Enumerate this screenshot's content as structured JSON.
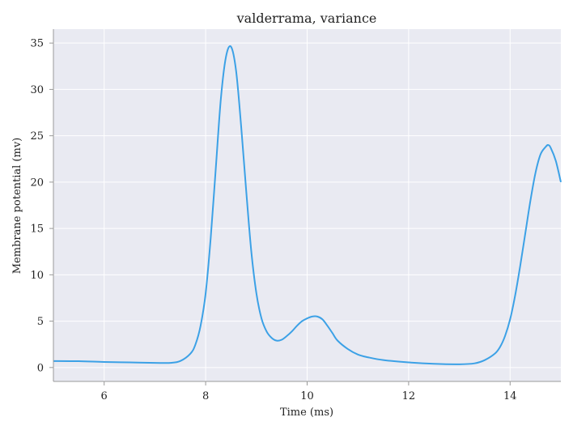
{
  "chart_data": {
    "type": "line",
    "title": "valderrama, variance",
    "xlabel": "Time (ms)",
    "ylabel": "Membrane potential (mv)",
    "xlim": [
      5.0,
      15.0
    ],
    "ylim": [
      -1.5,
      36.5
    ],
    "xticks": [
      6,
      8,
      10,
      12,
      14
    ],
    "yticks": [
      0,
      5,
      10,
      15,
      20,
      25,
      30,
      35
    ],
    "grid": true,
    "plot_background": "#e9eaf2",
    "line_color": "#3ca1e6",
    "series": [
      {
        "x": [
          5.0,
          5.5,
          6.0,
          6.5,
          7.0,
          7.3,
          7.5,
          7.7,
          7.8,
          7.9,
          8.0,
          8.1,
          8.2,
          8.3,
          8.4,
          8.5,
          8.6,
          8.7,
          8.8,
          8.9,
          9.0,
          9.1,
          9.2,
          9.3,
          9.4,
          9.5,
          9.6,
          9.7,
          9.8,
          9.9,
          10.0,
          10.1,
          10.2,
          10.3,
          10.4,
          10.5,
          10.6,
          10.8,
          11.0,
          11.2,
          11.5,
          12.0,
          12.5,
          13.0,
          13.3,
          13.5,
          13.7,
          13.8,
          13.9,
          14.0,
          14.1,
          14.2,
          14.3,
          14.4,
          14.5,
          14.6,
          14.7,
          14.75,
          14.8,
          14.9,
          15.0
        ],
        "y": [
          0.7,
          0.68,
          0.6,
          0.55,
          0.5,
          0.5,
          0.7,
          1.5,
          2.5,
          4.5,
          8.0,
          14.0,
          21.5,
          29.0,
          33.5,
          34.6,
          32.0,
          26.0,
          19.0,
          12.5,
          8.0,
          5.3,
          3.9,
          3.2,
          2.9,
          3.0,
          3.4,
          3.9,
          4.5,
          5.0,
          5.3,
          5.5,
          5.5,
          5.2,
          4.5,
          3.7,
          2.9,
          2.0,
          1.4,
          1.1,
          0.8,
          0.55,
          0.4,
          0.35,
          0.45,
          0.8,
          1.5,
          2.2,
          3.4,
          5.2,
          7.8,
          11.0,
          14.5,
          18.0,
          21.0,
          23.0,
          23.8,
          24.0,
          23.7,
          22.3,
          20.0
        ]
      }
    ]
  }
}
